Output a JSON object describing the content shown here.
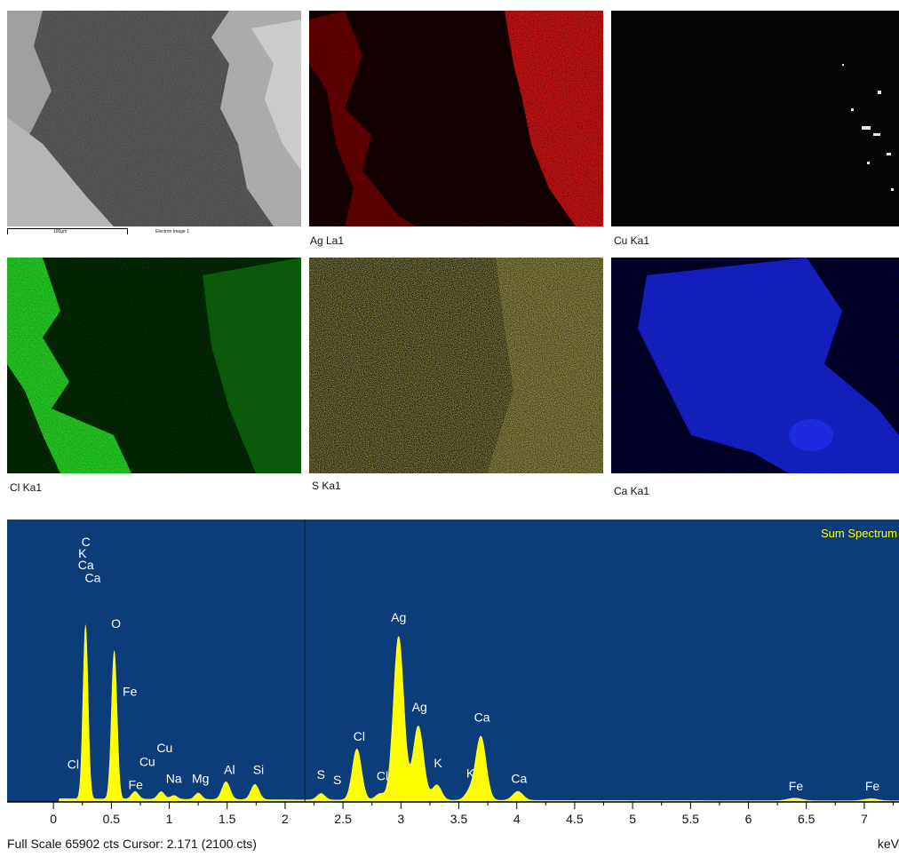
{
  "maps": [
    {
      "id": "electron",
      "label": "",
      "scalebar": "100µm",
      "image_label": "Electron Image 1",
      "color": "#777777"
    },
    {
      "id": "ag",
      "label": "Ag La1",
      "color": "#e01010"
    },
    {
      "id": "cu",
      "label": "Cu Ka1",
      "color": "#ffffff"
    },
    {
      "id": "cl",
      "label": "Cl Ka1",
      "color": "#22cc22"
    },
    {
      "id": "s",
      "label": "S Ka1",
      "color": "#c8c030"
    },
    {
      "id": "ca",
      "label": "Ca Ka1",
      "color": "#1a2ad0"
    }
  ],
  "spectrum": {
    "title": "Sum Spectrum",
    "footer": "Full Scale 65902 cts Cursor: 2.171  (2100 cts)",
    "unit": "keV",
    "background": "#0b3d7a",
    "fill": "#ffff00"
  },
  "chart_data": {
    "type": "area",
    "title": "Sum Spectrum",
    "xlabel": "keV",
    "ylabel": "",
    "xlim": [
      -0.4,
      7.3
    ],
    "ylim": [
      0,
      100
    ],
    "x_ticks": [
      0,
      0.5,
      1,
      1.5,
      2,
      2.5,
      3,
      3.5,
      4,
      4.5,
      5,
      5.5,
      6,
      6.5,
      7
    ],
    "x_tick_labels": [
      "0",
      "0.5",
      "1",
      "1.5",
      "2",
      "2.5",
      "3",
      "3.5",
      "4",
      "4.5",
      "5",
      "5.5",
      "6",
      "6.5",
      "7"
    ],
    "cursor_x": 2.171,
    "peaks": [
      {
        "x": 0.277,
        "y": 68,
        "w": 0.022
      },
      {
        "x": 0.525,
        "y": 58,
        "w": 0.024
      },
      {
        "x": 0.705,
        "y": 3,
        "w": 0.03
      },
      {
        "x": 0.93,
        "y": 3,
        "w": 0.03
      },
      {
        "x": 1.04,
        "y": 1.5,
        "w": 0.03
      },
      {
        "x": 1.25,
        "y": 2.5,
        "w": 0.03
      },
      {
        "x": 1.49,
        "y": 7,
        "w": 0.035
      },
      {
        "x": 1.74,
        "y": 6,
        "w": 0.035
      },
      {
        "x": 2.31,
        "y": 2.5,
        "w": 0.035
      },
      {
        "x": 2.62,
        "y": 20,
        "w": 0.04
      },
      {
        "x": 2.82,
        "y": 2.5,
        "w": 0.04
      },
      {
        "x": 2.98,
        "y": 64,
        "w": 0.045
      },
      {
        "x": 3.15,
        "y": 29,
        "w": 0.045
      },
      {
        "x": 3.31,
        "y": 6,
        "w": 0.04
      },
      {
        "x": 3.59,
        "y": 3,
        "w": 0.04
      },
      {
        "x": 3.69,
        "y": 25,
        "w": 0.045
      },
      {
        "x": 4.01,
        "y": 3.5,
        "w": 0.045
      },
      {
        "x": 6.4,
        "y": 1,
        "w": 0.06
      },
      {
        "x": 7.06,
        "y": 0.8,
        "w": 0.06
      }
    ],
    "peak_labels": [
      {
        "text": "C",
        "x": 0.28,
        "y": 100
      },
      {
        "text": "K",
        "x": 0.25,
        "y": 95.5
      },
      {
        "text": "Ca",
        "x": 0.28,
        "y": 91
      },
      {
        "text": "Ca",
        "x": 0.34,
        "y": 86
      },
      {
        "text": "O",
        "x": 0.54,
        "y": 68
      },
      {
        "text": "Fe",
        "x": 0.66,
        "y": 41.5
      },
      {
        "text": "Cl",
        "x": 0.17,
        "y": 13
      },
      {
        "text": "Cu",
        "x": 0.96,
        "y": 19.5
      },
      {
        "text": "Cu",
        "x": 0.81,
        "y": 14
      },
      {
        "text": "Fe",
        "x": 0.71,
        "y": 5
      },
      {
        "text": "Na",
        "x": 1.04,
        "y": 7.5
      },
      {
        "text": "Mg",
        "x": 1.27,
        "y": 7.5
      },
      {
        "text": "Al",
        "x": 1.52,
        "y": 11
      },
      {
        "text": "Si",
        "x": 1.77,
        "y": 11
      },
      {
        "text": "S",
        "x": 2.31,
        "y": 9
      },
      {
        "text": "S",
        "x": 2.45,
        "y": 7
      },
      {
        "text": "Cl",
        "x": 2.64,
        "y": 24
      },
      {
        "text": "Cl",
        "x": 2.84,
        "y": 8.5
      },
      {
        "text": "Ag",
        "x": 2.98,
        "y": 70.5
      },
      {
        "text": "Ag",
        "x": 3.16,
        "y": 35.5
      },
      {
        "text": "K",
        "x": 3.32,
        "y": 13.5
      },
      {
        "text": "Ca",
        "x": 3.7,
        "y": 31.5
      },
      {
        "text": "K",
        "x": 3.6,
        "y": 9.5
      },
      {
        "text": "Ca",
        "x": 4.02,
        "y": 7.5
      },
      {
        "text": "Fe",
        "x": 6.41,
        "y": 4.5
      },
      {
        "text": "Fe",
        "x": 7.07,
        "y": 4.5
      }
    ]
  }
}
